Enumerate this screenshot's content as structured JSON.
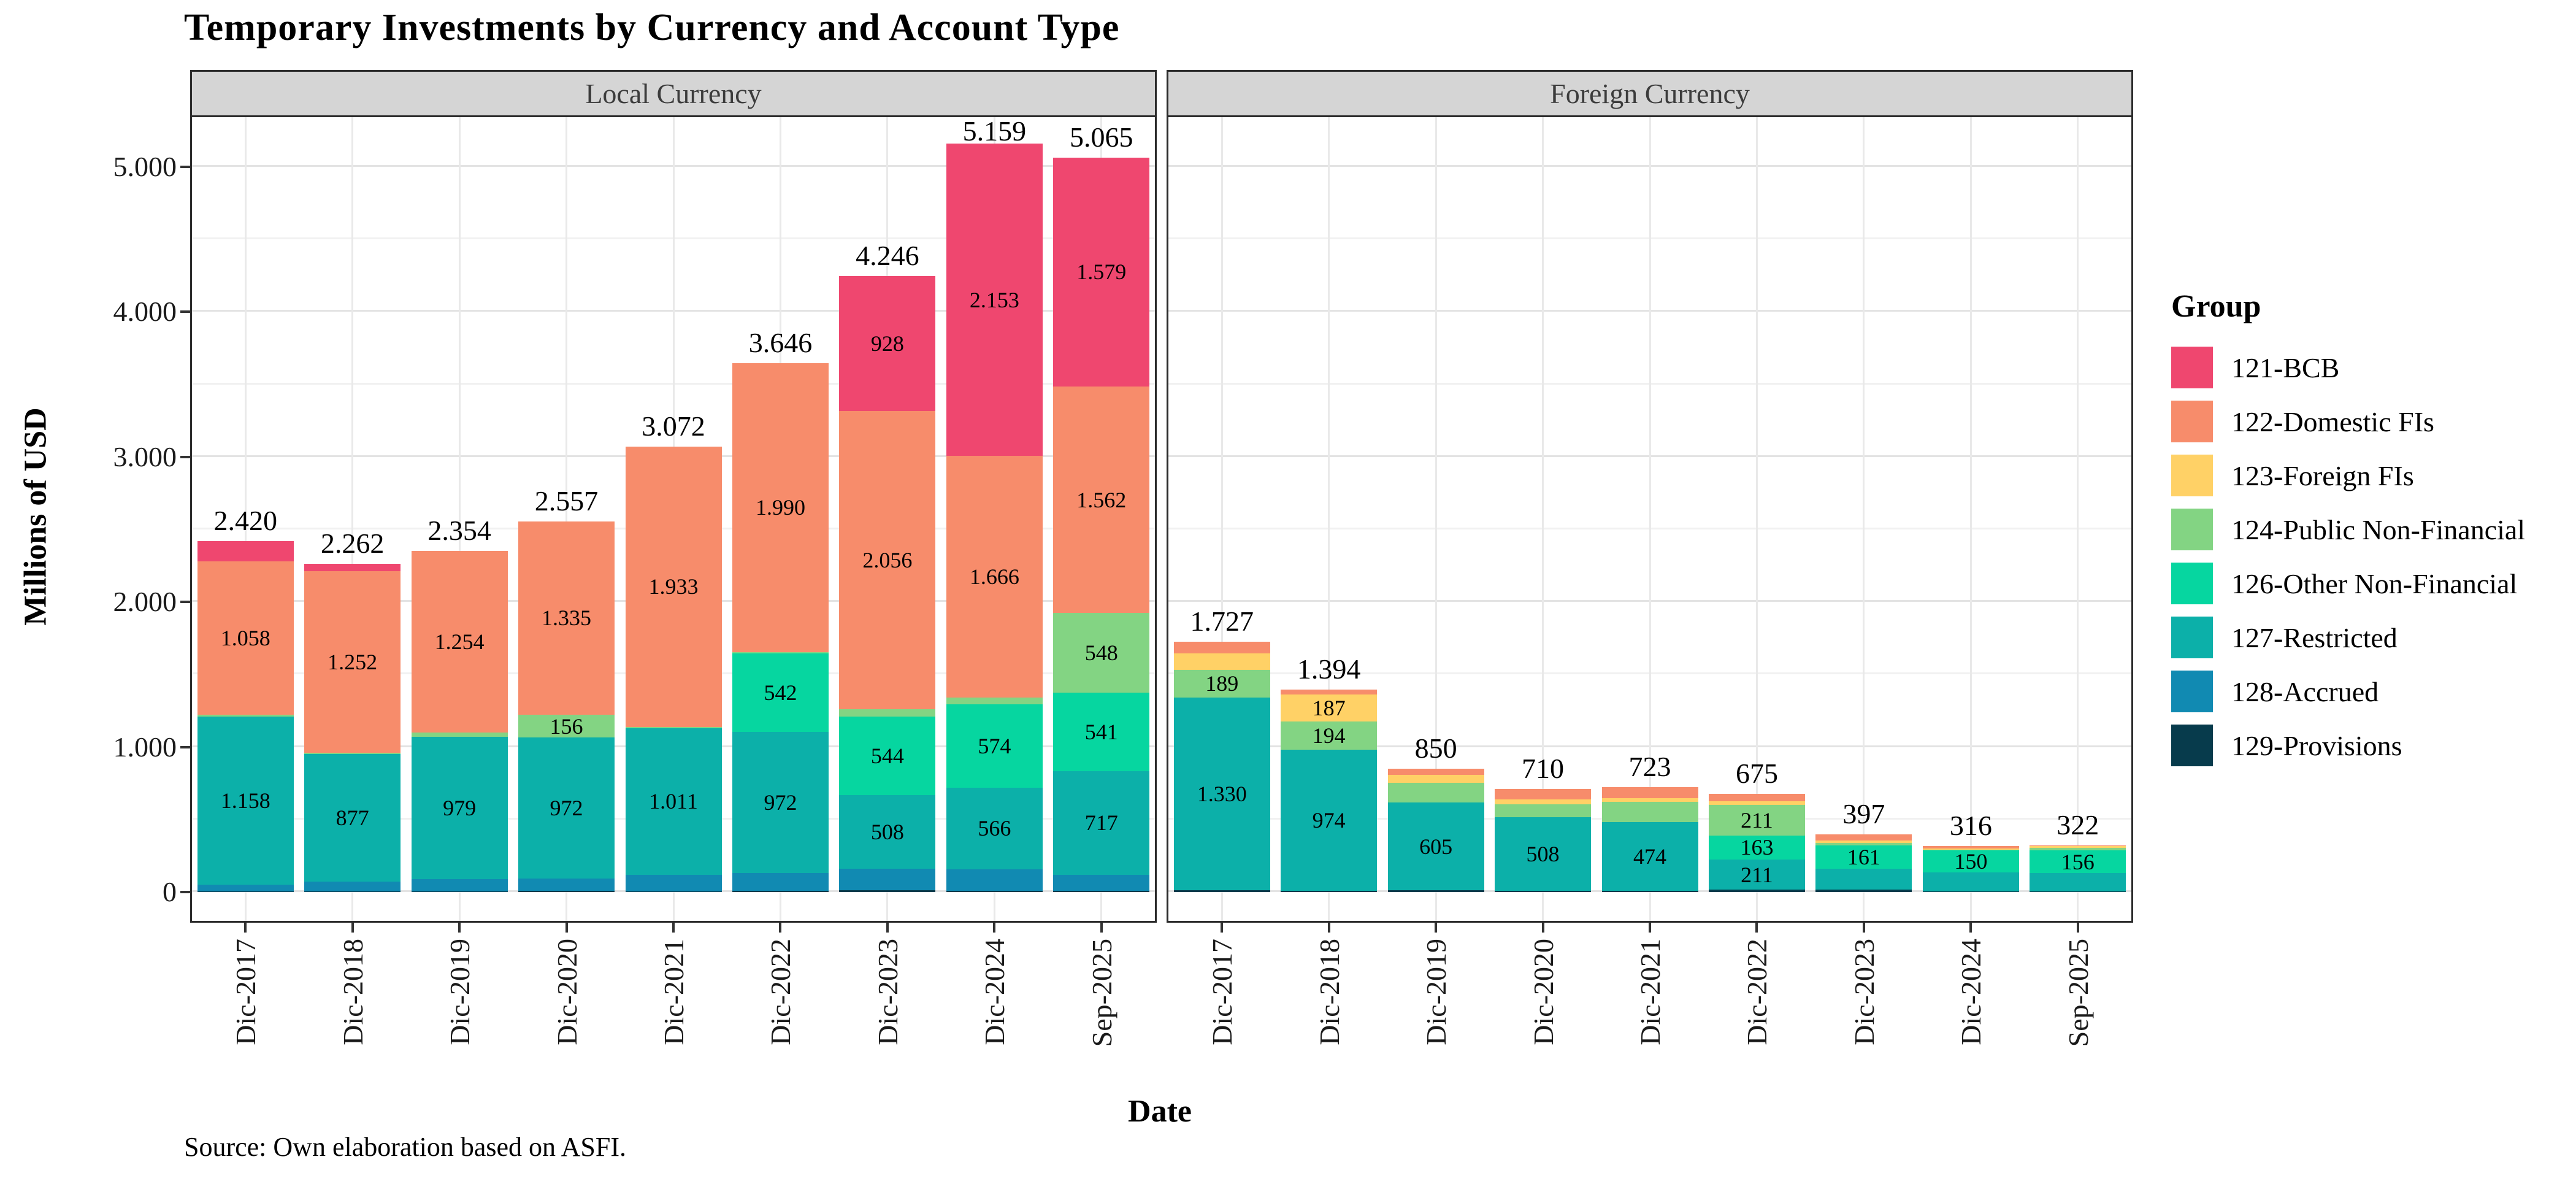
{
  "header": {
    "title": "Temporary Investments by Currency and Account Type"
  },
  "footer": {
    "caption": "Source: Own elaboration based on ASFI."
  },
  "legend": {
    "title": "Group"
  },
  "chart_data": {
    "type": "bar",
    "stacked": true,
    "title": "Temporary Investments by Currency and Account Type",
    "xlabel": "Date",
    "ylabel": "Millions of USD",
    "ylim": [
      0,
      5350
    ],
    "yticks": [
      0,
      1000,
      2000,
      3000,
      4000,
      5000
    ],
    "ytick_labels": [
      "0",
      "1.000",
      "2.000",
      "3.000",
      "4.000",
      "5.000"
    ],
    "minor_grid_step": 500,
    "grid": true,
    "legend_position": "right",
    "number_format": "dot-thousands",
    "segment_label_min_value": 150,
    "categories": [
      "Dic-2017",
      "Dic-2018",
      "Dic-2019",
      "Dic-2020",
      "Dic-2021",
      "Dic-2022",
      "Dic-2023",
      "Dic-2024",
      "Sep-2025"
    ],
    "groups": [
      {
        "id": "121",
        "label": "121-BCB",
        "color": "#EF476F"
      },
      {
        "id": "122",
        "label": "122-Domestic FIs",
        "color": "#F78C6B"
      },
      {
        "id": "123",
        "label": "123-Foreign FIs",
        "color": "#FFD166"
      },
      {
        "id": "124",
        "label": "124-Public Non-Financial",
        "color": "#83D483"
      },
      {
        "id": "126",
        "label": "126-Other Non-Financial",
        "color": "#06D6A0"
      },
      {
        "id": "127",
        "label": "127-Restricted",
        "color": "#0CB0A9"
      },
      {
        "id": "128",
        "label": "128-Accrued",
        "color": "#118AB2"
      },
      {
        "id": "129",
        "label": "129-Provisions",
        "color": "#073B4C"
      }
    ],
    "stack_order": [
      "129",
      "128",
      "127",
      "126",
      "124",
      "123",
      "122",
      "121"
    ],
    "facets": [
      {
        "label": "Local Currency",
        "totals": [
          2420,
          2262,
          2354,
          2557,
          3072,
          3646,
          4246,
          5159,
          5065
        ],
        "series": {
          "121": [
            140,
            48,
            0,
            0,
            0,
            0,
            928,
            2153,
            1579
          ],
          "122": [
            1058,
            1252,
            1254,
            1335,
            1933,
            1990,
            2056,
            1666,
            1562
          ],
          "123": [
            0,
            0,
            0,
            0,
            0,
            0,
            0,
            0,
            0
          ],
          "124": [
            12,
            12,
            30,
            156,
            8,
            10,
            50,
            45,
            548
          ],
          "126": [
            0,
            0,
            0,
            0,
            0,
            542,
            544,
            574,
            541
          ],
          "127": [
            1158,
            877,
            979,
            972,
            1011,
            972,
            508,
            566,
            717
          ],
          "128": [
            47,
            67,
            85,
            87,
            115,
            125,
            148,
            148,
            108
          ],
          "129": [
            5,
            6,
            6,
            7,
            5,
            7,
            12,
            7,
            10
          ]
        }
      },
      {
        "label": "Foreign Currency",
        "totals": [
          1727,
          1394,
          850,
          710,
          723,
          675,
          397,
          316,
          322
        ],
        "series": {
          "121": [
            0,
            0,
            0,
            0,
            0,
            0,
            0,
            0,
            0
          ],
          "122": [
            80,
            30,
            44,
            70,
            75,
            50,
            42,
            14,
            5
          ],
          "123": [
            115,
            187,
            55,
            35,
            25,
            25,
            15,
            8,
            14
          ],
          "124": [
            189,
            194,
            134,
            87,
            140,
            211,
            20,
            8,
            16
          ],
          "126": [
            0,
            0,
            0,
            0,
            0,
            163,
            161,
            150,
            156
          ],
          "127": [
            1330,
            974,
            605,
            508,
            474,
            211,
            140,
            132,
            127
          ],
          "128": [
            0,
            0,
            0,
            0,
            0,
            0,
            0,
            0,
            0
          ],
          "129": [
            13,
            9,
            12,
            10,
            9,
            15,
            19,
            4,
            4
          ]
        }
      }
    ]
  }
}
